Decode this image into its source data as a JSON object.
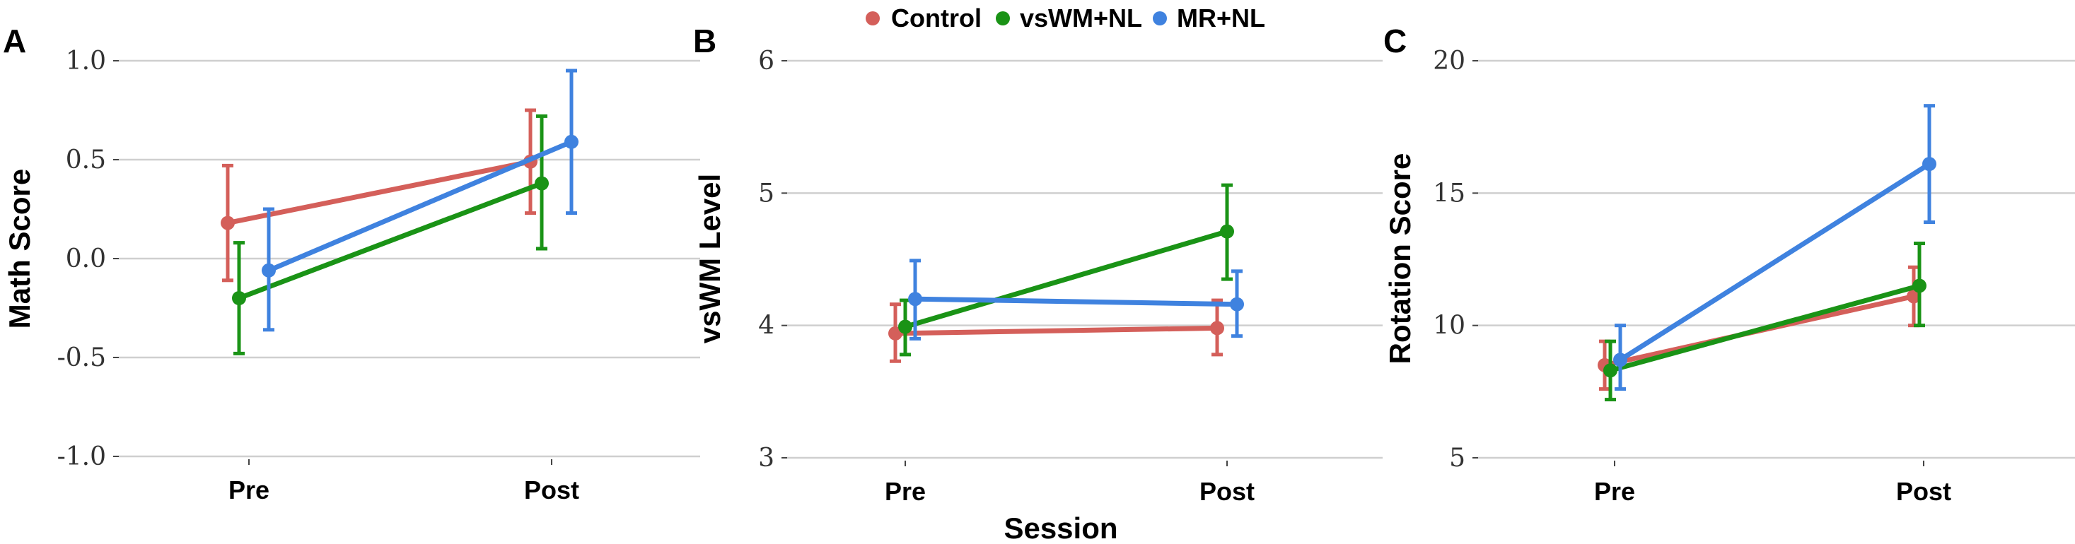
{
  "legend": {
    "items": [
      {
        "label": "Control",
        "color": "#d45f5a"
      },
      {
        "label": "vsWM+NL",
        "color": "#1a9316"
      },
      {
        "label": "MR+NL",
        "color": "#3f82df"
      }
    ]
  },
  "shared_xlabel": "Session",
  "chart_data": [
    {
      "type": "line",
      "panel_label": "A",
      "ylabel": "Math Score",
      "categories": [
        "Pre",
        "Post"
      ],
      "ylim": [
        -1.0,
        1.0
      ],
      "yticks": [
        -1.0,
        -0.5,
        0.0,
        0.5,
        1.0
      ],
      "ytick_labels": [
        "-1.0",
        "-0.5",
        "0.0",
        "0.5",
        "1.0"
      ],
      "grid": true,
      "series": [
        {
          "name": "Control",
          "values": [
            0.18,
            0.49
          ],
          "err_low": [
            -0.11,
            0.23
          ],
          "err_high": [
            0.47,
            0.75
          ]
        },
        {
          "name": "vsWM+NL",
          "values": [
            -0.2,
            0.38
          ],
          "err_low": [
            -0.48,
            0.05
          ],
          "err_high": [
            0.08,
            0.72
          ]
        },
        {
          "name": "MR+NL",
          "values": [
            -0.06,
            0.59
          ],
          "err_low": [
            -0.36,
            0.23
          ],
          "err_high": [
            0.25,
            0.95
          ]
        }
      ]
    },
    {
      "type": "line",
      "panel_label": "B",
      "ylabel": "vsWM Level",
      "categories": [
        "Pre",
        "Post"
      ],
      "ylim": [
        3,
        6
      ],
      "yticks": [
        3,
        4,
        5,
        6
      ],
      "ytick_labels": [
        "3",
        "4",
        "5",
        "6"
      ],
      "grid": true,
      "series": [
        {
          "name": "Control",
          "values": [
            3.94,
            3.98
          ],
          "err_low": [
            3.73,
            3.78
          ],
          "err_high": [
            4.16,
            4.19
          ]
        },
        {
          "name": "vsWM+NL",
          "values": [
            3.99,
            4.71
          ],
          "err_low": [
            3.78,
            4.35
          ],
          "err_high": [
            4.19,
            5.06
          ]
        },
        {
          "name": "MR+NL",
          "values": [
            4.2,
            4.16
          ],
          "err_low": [
            3.9,
            3.92
          ],
          "err_high": [
            4.49,
            4.41
          ]
        }
      ]
    },
    {
      "type": "line",
      "panel_label": "C",
      "ylabel": "Rotation Score",
      "categories": [
        "Pre",
        "Post"
      ],
      "ylim": [
        5,
        20
      ],
      "yticks": [
        5,
        10,
        15,
        20
      ],
      "ytick_labels": [
        "5",
        "10",
        "15",
        "20"
      ],
      "grid": true,
      "series": [
        {
          "name": "Control",
          "values": [
            8.5,
            11.1
          ],
          "err_low": [
            7.6,
            10.0
          ],
          "err_high": [
            9.4,
            12.2
          ]
        },
        {
          "name": "vsWM+NL",
          "values": [
            8.3,
            11.5
          ],
          "err_low": [
            7.2,
            10.0
          ],
          "err_high": [
            9.4,
            13.1
          ]
        },
        {
          "name": "MR+NL",
          "values": [
            8.7,
            16.1
          ],
          "err_low": [
            7.6,
            13.9
          ],
          "err_high": [
            10.0,
            18.3
          ]
        }
      ]
    }
  ]
}
